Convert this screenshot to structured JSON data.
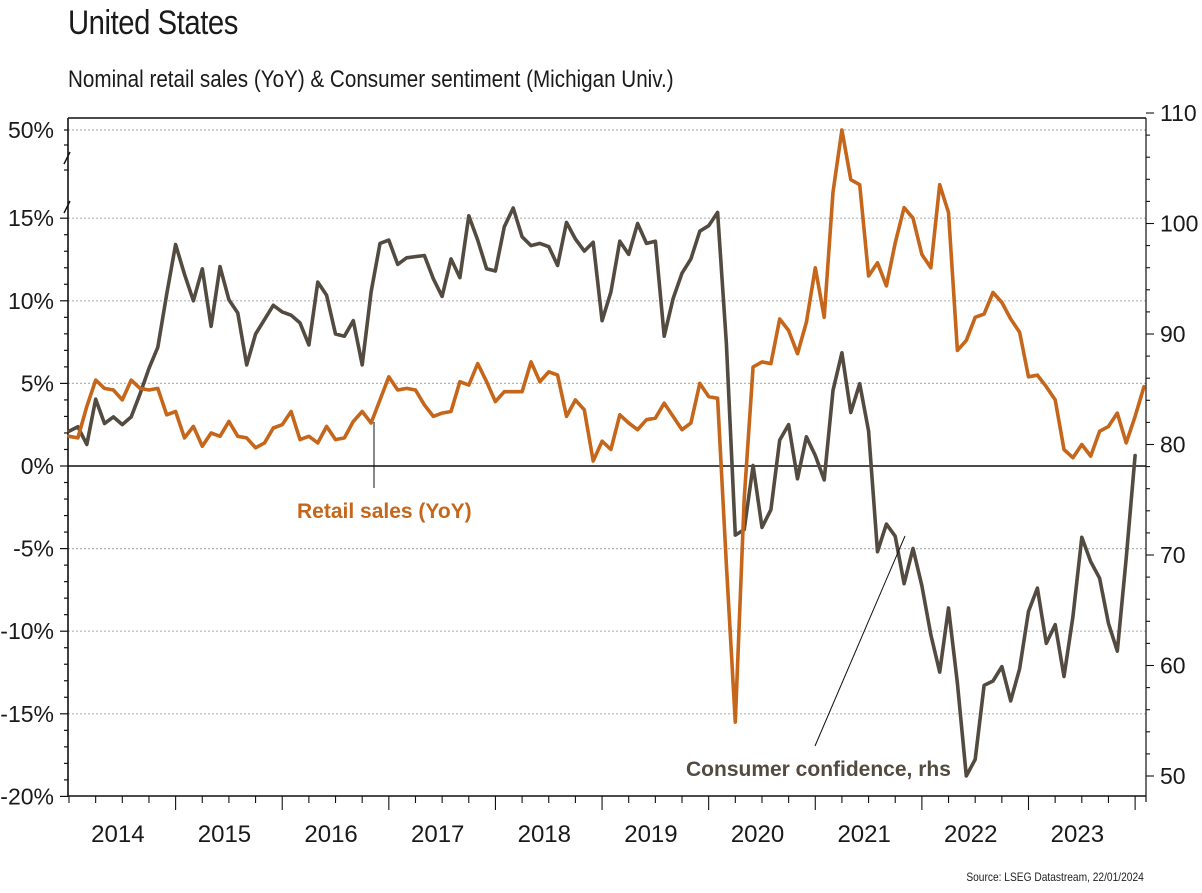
{
  "header": {
    "title": "United States",
    "subtitle": "Nominal retail sales (YoY) & Consumer sentiment (Michigan Univ.)"
  },
  "footer": {
    "source": "Source: LSEG Datastream, 22/01/2024"
  },
  "annotations": {
    "retail": "Retail sales (YoY)",
    "confidence": "Consumer confidence, rhs"
  },
  "colors": {
    "retail": "#c5661b",
    "sentiment": "#534a40",
    "grid": "#b5b5b5",
    "axis": "#111111"
  },
  "chart_data": {
    "type": "line",
    "title": "United States",
    "subtitle": "Nominal retail sales (YoY) & Consumer sentiment (Michigan Univ.)",
    "xlabel": "",
    "x_start": "2014-01",
    "frequency": "monthly",
    "x_tick_labels": [
      "2014",
      "2015",
      "2016",
      "2017",
      "2018",
      "2019",
      "2020",
      "2021",
      "2022",
      "2023"
    ],
    "y_left": {
      "label": "",
      "ylim": [
        -20,
        50
      ],
      "axis_break": [
        15,
        50
      ],
      "tick_labels": [
        "50%",
        "15%",
        "10%",
        "5%",
        "0%",
        "-5%",
        "-10%",
        "-15%",
        "-20%"
      ],
      "tick_values": [
        50,
        15,
        10,
        5,
        0,
        -5,
        -10,
        -15,
        -20
      ]
    },
    "y_right": {
      "label": "rhs",
      "ylim": [
        50,
        110
      ],
      "tick_labels": [
        "110",
        "100",
        "90",
        "80",
        "70",
        "60",
        "50"
      ],
      "tick_values": [
        110,
        100,
        90,
        80,
        70,
        60,
        50
      ]
    },
    "grid": true,
    "series": [
      {
        "name": "Retail sales (YoY)",
        "axis": "left",
        "unit": "%",
        "values": [
          1.8,
          1.7,
          3.6,
          5.2,
          4.7,
          4.6,
          4.0,
          5.2,
          4.7,
          4.6,
          4.7,
          3.1,
          3.3,
          1.7,
          2.4,
          1.2,
          2.0,
          1.8,
          2.7,
          1.8,
          1.7,
          1.1,
          1.4,
          2.3,
          2.5,
          3.3,
          1.6,
          1.8,
          1.4,
          2.4,
          1.6,
          1.7,
          2.7,
          3.3,
          2.6,
          4.0,
          5.4,
          4.6,
          4.7,
          4.6,
          3.7,
          3.0,
          3.2,
          3.3,
          5.1,
          4.9,
          6.2,
          5.1,
          3.9,
          4.5,
          4.5,
          4.5,
          6.3,
          5.1,
          5.7,
          5.5,
          3.0,
          4.0,
          3.4,
          0.3,
          1.5,
          1.0,
          3.1,
          2.6,
          2.2,
          2.8,
          2.9,
          3.8,
          3.0,
          2.2,
          2.6,
          5.0,
          4.2,
          4.1,
          -6.0,
          -15.5,
          -2.0,
          6.0,
          6.3,
          6.2,
          8.9,
          8.2,
          6.8,
          8.7,
          12.0,
          9.0,
          25.0,
          50.0,
          30.0,
          28.0,
          11.5,
          12.3,
          10.9,
          13.5,
          18.8,
          15.0,
          12.8,
          12.0,
          28.0,
          16.8,
          7.0,
          7.6,
          9.0,
          9.2,
          10.5,
          9.9,
          8.9,
          8.1,
          5.4,
          5.5,
          4.8,
          4.0,
          1.0,
          0.5,
          1.3,
          0.6,
          2.1,
          2.4,
          3.2,
          1.4,
          3.0,
          4.8
        ]
      },
      {
        "name": "Consumer confidence",
        "axis": "right",
        "unit": "index",
        "values": [
          81.2,
          81.6,
          80.0,
          84.1,
          81.9,
          82.5,
          81.8,
          82.5,
          84.6,
          86.9,
          88.8,
          93.6,
          98.1,
          95.4,
          93.0,
          95.9,
          90.7,
          96.1,
          93.1,
          91.9,
          87.2,
          90.0,
          91.3,
          92.6,
          92.0,
          91.7,
          91.0,
          89.0,
          94.7,
          93.5,
          90.0,
          89.8,
          91.2,
          87.2,
          93.8,
          98.2,
          98.5,
          96.3,
          96.9,
          97.0,
          97.1,
          95.0,
          93.4,
          96.8,
          95.1,
          100.7,
          98.5,
          95.9,
          95.7,
          99.7,
          101.4,
          98.8,
          98.0,
          98.2,
          97.9,
          96.2,
          100.1,
          98.6,
          97.5,
          98.3,
          91.2,
          93.8,
          98.4,
          97.2,
          100.0,
          98.2,
          98.4,
          89.8,
          93.2,
          95.5,
          96.8,
          99.3,
          99.8,
          101.0,
          89.1,
          71.8,
          72.3,
          78.1,
          72.5,
          74.1,
          80.4,
          81.8,
          76.9,
          80.7,
          79.0,
          76.8,
          84.9,
          88.3,
          82.9,
          85.5,
          81.2,
          70.3,
          72.8,
          71.7,
          67.4,
          70.6,
          67.2,
          62.8,
          59.4,
          65.2,
          58.4,
          50.0,
          51.5,
          58.2,
          58.6,
          59.9,
          56.8,
          59.7,
          64.9,
          67.0,
          62.0,
          63.7,
          59.0,
          64.4,
          71.6,
          69.4,
          67.9,
          63.8,
          61.3,
          69.7,
          79.0
        ]
      }
    ],
    "annotations": [
      {
        "text": "Retail sales (YoY)",
        "series": "Retail sales (YoY)"
      },
      {
        "text": "Consumer confidence, rhs",
        "series": "Consumer confidence"
      }
    ]
  }
}
